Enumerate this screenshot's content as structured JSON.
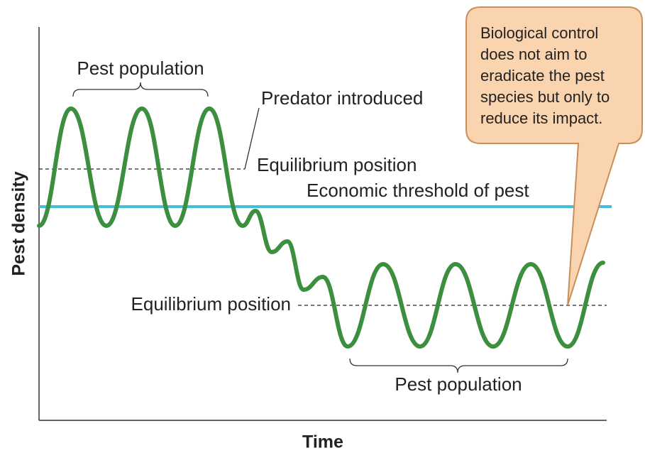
{
  "axes": {
    "y_label": "Pest density",
    "x_label": "Time"
  },
  "labels": {
    "pest_population_top": "Pest population",
    "predator_introduced": "Predator introduced",
    "equilibrium_top": "Equilibrium position",
    "economic_threshold": "Economic threshold of pest",
    "equilibrium_bottom": "Equilibrium position",
    "pest_population_bottom": "Pest population"
  },
  "callout": {
    "lines": [
      "Biological control",
      "does not aim to",
      "eradicate the pest",
      "species but only to",
      "reduce its impact."
    ]
  }
}
